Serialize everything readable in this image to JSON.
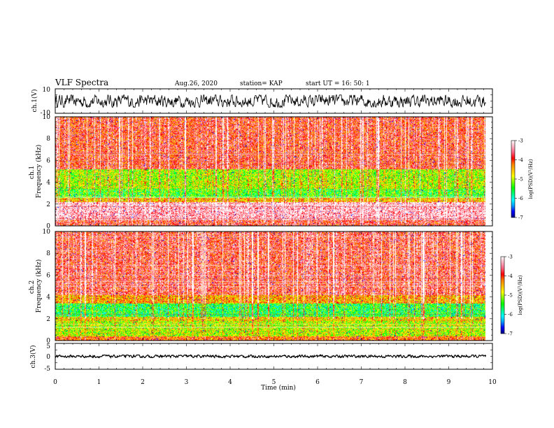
{
  "header": {
    "title": "VLF Spectra",
    "date": "Aug.26, 2020",
    "station": "station= KAP",
    "start": "start UT =   16: 50: 1"
  },
  "colorbar_palette": [
    "#000080",
    "#0000ff",
    "#00a0ff",
    "#00ffff",
    "#00ff80",
    "#00ff00",
    "#80ff00",
    "#ffff00",
    "#ffc000",
    "#ff8000",
    "#ff0000",
    "#ff6080",
    "#ffb0c0",
    "#ffffff"
  ],
  "chart_data": [
    {
      "type": "line",
      "panel": "ch1-waveform",
      "ylabel": "ch.1(V)",
      "ylim": [
        -10,
        10
      ],
      "y_ticks": [
        "10",
        "-10"
      ],
      "x_range": [
        0,
        9.85
      ],
      "amplitude_V": [
        -5,
        5
      ],
      "color": "#000000"
    },
    {
      "type": "heatmap",
      "panel": "ch1-spectrogram",
      "ylabel": "ch.1\nFrequency (kHz)",
      "ylim": [
        0,
        10
      ],
      "y_ticks": [
        "0",
        "2",
        "4",
        "6",
        "8",
        "10"
      ],
      "x_range": [
        0,
        9.85
      ],
      "value_scale": "log(PSD)",
      "bands": [
        {
          "from": 0,
          "to": 0.6,
          "level": -3.8
        },
        {
          "from": 0.6,
          "to": 2.2,
          "level": -3.3
        },
        {
          "from": 2.2,
          "to": 2.6,
          "level": -4.6
        },
        {
          "from": 2.6,
          "to": 3.4,
          "level": -5.4
        },
        {
          "from": 3.4,
          "to": 4.2,
          "level": -5.0
        },
        {
          "from": 4.2,
          "to": 5.2,
          "level": -5.1
        },
        {
          "from": 5.2,
          "to": 10,
          "level": -3.9
        }
      ],
      "colorbar": {
        "label": "log(PSD)(V²/Hz)",
        "range": [
          -7,
          -3
        ],
        "ticks": [
          "-3",
          "-4",
          "-5",
          "-6",
          "-7"
        ]
      }
    },
    {
      "type": "heatmap",
      "panel": "ch2-spectrogram",
      "ylabel": "ch.2\nFrequency (kHz)",
      "ylim": [
        0,
        10
      ],
      "y_ticks": [
        "0",
        "2",
        "4",
        "6",
        "8",
        "10"
      ],
      "x_range": [
        0,
        9.85
      ],
      "value_scale": "log(PSD)",
      "bands": [
        {
          "from": 0,
          "to": 0.4,
          "level": -4.2
        },
        {
          "from": 0.4,
          "to": 1.8,
          "level": -5.0
        },
        {
          "from": 1.8,
          "to": 2.2,
          "level": -4.7
        },
        {
          "from": 2.2,
          "to": 3.4,
          "level": -5.6
        },
        {
          "from": 3.4,
          "to": 4.2,
          "level": -4.5
        },
        {
          "from": 4.2,
          "to": 10,
          "level": -3.8
        }
      ],
      "colorbar": {
        "label": "log(PSD)(V²/Hz)",
        "range": [
          -7,
          -3
        ],
        "ticks": [
          "-3",
          "-4",
          "-5",
          "-6",
          "-7"
        ]
      }
    },
    {
      "type": "line",
      "panel": "ch3-waveform",
      "ylabel": "ch.3(V)",
      "ylim": [
        -5,
        5
      ],
      "y_ticks": [
        "5",
        "0",
        "-5"
      ],
      "x_range": [
        0,
        9.85
      ],
      "amplitude_V": [
        -0.5,
        0.5
      ],
      "color": "#000000"
    }
  ],
  "x_axis": {
    "label": "Time (min)",
    "range": [
      0,
      10
    ],
    "ticks": [
      "0",
      "1",
      "2",
      "3",
      "4",
      "5",
      "6",
      "7",
      "8",
      "9",
      "10"
    ]
  }
}
